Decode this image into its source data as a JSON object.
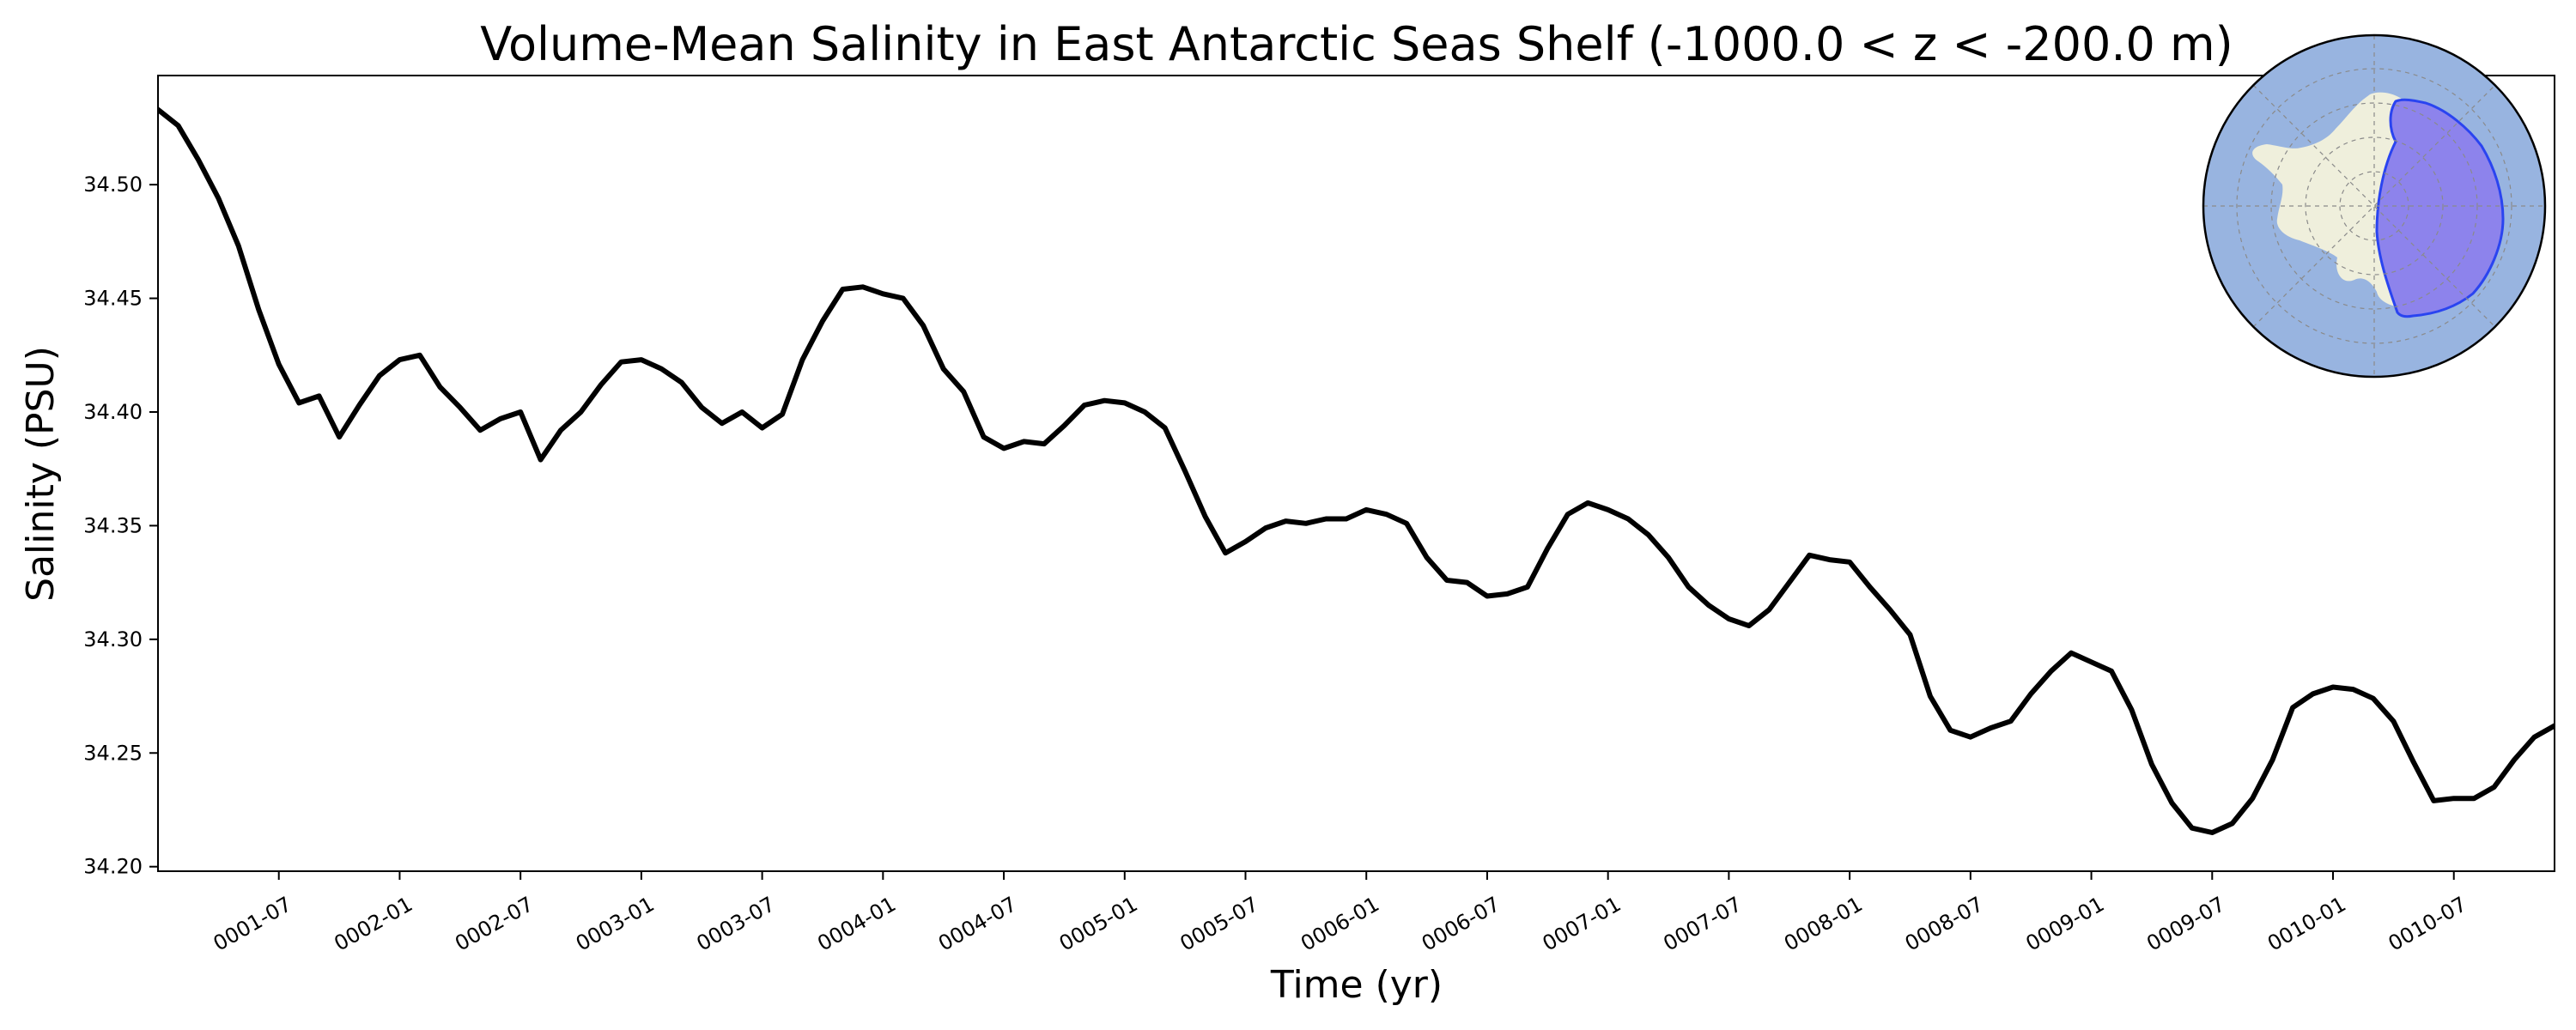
{
  "chart_data": {
    "type": "line",
    "title": "Volume-Mean Salinity in East Antarctic Seas Shelf (-1000.0 < z < -200.0 m)",
    "xlabel": "Time (yr)",
    "ylabel": "Salinity (PSU)",
    "grid": false,
    "legend": "none",
    "line_color": "#000000",
    "xlim": [
      "0001-01-01",
      "0010-12-01"
    ],
    "ylim": [
      34.198,
      34.548
    ],
    "yticks": [
      "34.20",
      "34.25",
      "34.30",
      "34.35",
      "34.40",
      "34.45",
      "34.50"
    ],
    "xticks": [
      "0001-07",
      "0002-01",
      "0002-07",
      "0003-01",
      "0003-07",
      "0004-01",
      "0004-07",
      "0005-01",
      "0005-07",
      "0006-01",
      "0006-07",
      "0007-01",
      "0007-07",
      "0008-01",
      "0008-07",
      "0009-01",
      "0009-07",
      "0010-01",
      "0010-07"
    ],
    "x": [
      "0001-01",
      "0001-02",
      "0001-03",
      "0001-04",
      "0001-05",
      "0001-06",
      "0001-07",
      "0001-08",
      "0001-09",
      "0001-10",
      "0001-11",
      "0001-12",
      "0002-01",
      "0002-02",
      "0002-03",
      "0002-04",
      "0002-05",
      "0002-06",
      "0002-07",
      "0002-08",
      "0002-09",
      "0002-10",
      "0002-11",
      "0002-12",
      "0003-01",
      "0003-02",
      "0003-03",
      "0003-04",
      "0003-05",
      "0003-06",
      "0003-07",
      "0003-08",
      "0003-09",
      "0003-10",
      "0003-11",
      "0003-12",
      "0004-01",
      "0004-02",
      "0004-03",
      "0004-04",
      "0004-05",
      "0004-06",
      "0004-07",
      "0004-08",
      "0004-09",
      "0004-10",
      "0004-11",
      "0004-12",
      "0005-01",
      "0005-02",
      "0005-03",
      "0005-04",
      "0005-05",
      "0005-06",
      "0005-07",
      "0005-08",
      "0005-09",
      "0005-10",
      "0005-11",
      "0005-12",
      "0006-01",
      "0006-02",
      "0006-03",
      "0006-04",
      "0006-05",
      "0006-06",
      "0006-07",
      "0006-08",
      "0006-09",
      "0006-10",
      "0006-11",
      "0006-12",
      "0007-01",
      "0007-02",
      "0007-03",
      "0007-04",
      "0007-05",
      "0007-06",
      "0007-07",
      "0007-08",
      "0007-09",
      "0007-10",
      "0007-11",
      "0007-12",
      "0008-01",
      "0008-02",
      "0008-03",
      "0008-04",
      "0008-05",
      "0008-06",
      "0008-07",
      "0008-08",
      "0008-09",
      "0008-10",
      "0008-11",
      "0008-12",
      "0009-01",
      "0009-02",
      "0009-03",
      "0009-04",
      "0009-05",
      "0009-06",
      "0009-07",
      "0009-08",
      "0009-09",
      "0009-10",
      "0009-11",
      "0009-12",
      "0010-01",
      "0010-02",
      "0010-03",
      "0010-04",
      "0010-05",
      "0010-06",
      "0010-07",
      "0010-08",
      "0010-09",
      "0010-10",
      "0010-11",
      "0010-12"
    ],
    "y": [
      34.533,
      34.526,
      34.511,
      34.494,
      34.473,
      34.445,
      34.421,
      34.404,
      34.407,
      34.389,
      34.403,
      34.416,
      34.423,
      34.425,
      34.411,
      34.402,
      34.392,
      34.397,
      34.4,
      34.379,
      34.392,
      34.4,
      34.412,
      34.422,
      34.423,
      34.419,
      34.413,
      34.402,
      34.395,
      34.4,
      34.393,
      34.399,
      34.423,
      34.44,
      34.454,
      34.455,
      34.452,
      34.45,
      34.438,
      34.419,
      34.409,
      34.389,
      34.384,
      34.387,
      34.386,
      34.394,
      34.403,
      34.405,
      34.404,
      34.4,
      34.393,
      34.374,
      34.354,
      34.338,
      34.343,
      34.349,
      34.352,
      34.351,
      34.353,
      34.353,
      34.357,
      34.355,
      34.351,
      34.336,
      34.326,
      34.325,
      34.319,
      34.32,
      34.323,
      34.34,
      34.355,
      34.36,
      34.357,
      34.353,
      34.346,
      34.336,
      34.323,
      34.315,
      34.309,
      34.306,
      34.313,
      34.325,
      34.337,
      34.335,
      34.334,
      34.323,
      34.313,
      34.302,
      34.275,
      34.26,
      34.257,
      34.261,
      34.264,
      34.276,
      34.286,
      34.294,
      34.29,
      34.286,
      34.269,
      34.245,
      34.228,
      34.217,
      34.215,
      34.219,
      34.23,
      34.247,
      34.27,
      34.276,
      34.279,
      34.278,
      34.274,
      34.264,
      34.246,
      34.229,
      34.23,
      34.23,
      34.235,
      34.247,
      34.257,
      34.262
    ],
    "inset_map": {
      "ocean_color": "#98b4e0",
      "land_color": "#efefdc",
      "region_fill_color": "#8d83ec",
      "region_edge_color": "#2a44f0"
    }
  }
}
